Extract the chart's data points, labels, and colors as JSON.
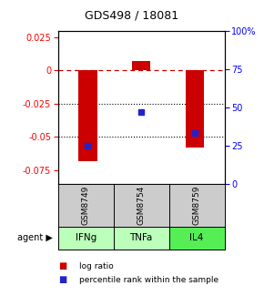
{
  "title": "GDS498 / 18081",
  "samples": [
    "GSM8749",
    "GSM8754",
    "GSM8759"
  ],
  "agents": [
    "IFNg",
    "TNFa",
    "IL4"
  ],
  "log_ratios": [
    -0.068,
    0.007,
    -0.058
  ],
  "percentile_ranks": [
    25.0,
    47.0,
    33.0
  ],
  "ylim_left": [
    -0.085,
    0.03
  ],
  "ylim_right": [
    0,
    100
  ],
  "left_ticks": [
    0.025,
    0.0,
    -0.025,
    -0.05,
    -0.075
  ],
  "right_ticks": [
    100,
    75,
    50,
    25,
    0
  ],
  "bar_color": "#cc0000",
  "dot_color": "#2222cc",
  "agent_colors": [
    "#bbffbb",
    "#bbffbb",
    "#55ee55"
  ],
  "sample_bg": "#cccccc",
  "zero_line_color": "#cc0000",
  "title_fontsize": 9,
  "tick_fontsize": 7,
  "bar_width": 0.35
}
